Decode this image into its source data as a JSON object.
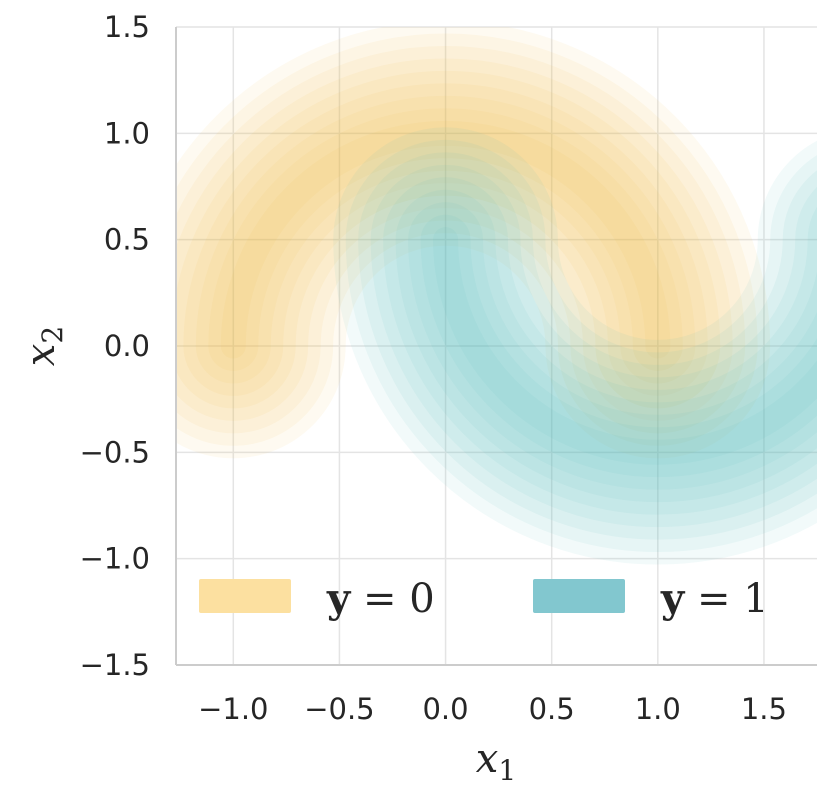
{
  "chart_data": {
    "type": "contour",
    "xlabel": "x",
    "xlabel_sub": "1",
    "ylabel": "x",
    "ylabel_sub": "2",
    "xlim": [
      -1.27,
      1.75
    ],
    "ylim": [
      -1.5,
      1.5
    ],
    "xticks": [
      -1.0,
      -0.5,
      0.0,
      0.5,
      1.0,
      1.5
    ],
    "xtick_labels": [
      "−1.0",
      "−0.5",
      "0.0",
      "0.5",
      "1.0",
      "1.5"
    ],
    "yticks": [
      -1.5,
      -1.0,
      -0.5,
      0.0,
      0.5,
      1.0,
      1.5
    ],
    "ytick_labels": [
      "−1.5",
      "−1.0",
      "−0.5",
      "0.0",
      "0.5",
      "1.0",
      "1.5"
    ],
    "grid": true,
    "legend_position": "bottom",
    "series": [
      {
        "label_var": "y",
        "label_rest": " = 0",
        "color": "#f5b942",
        "swatch_color": "#fce0a0",
        "arc": {
          "center": [
            0,
            0
          ],
          "radius": 1.0,
          "from_deg": 0,
          "to_deg": 180
        },
        "spread": 0.24
      },
      {
        "label_var": "y",
        "label_rest": " = 1",
        "color": "#4fb6bf",
        "swatch_color": "#82c7cf",
        "arc": {
          "center": [
            1,
            0.5
          ],
          "radius": 1.0,
          "from_deg": 180,
          "to_deg": 360
        },
        "spread": 0.24
      }
    ],
    "levels": 9
  }
}
